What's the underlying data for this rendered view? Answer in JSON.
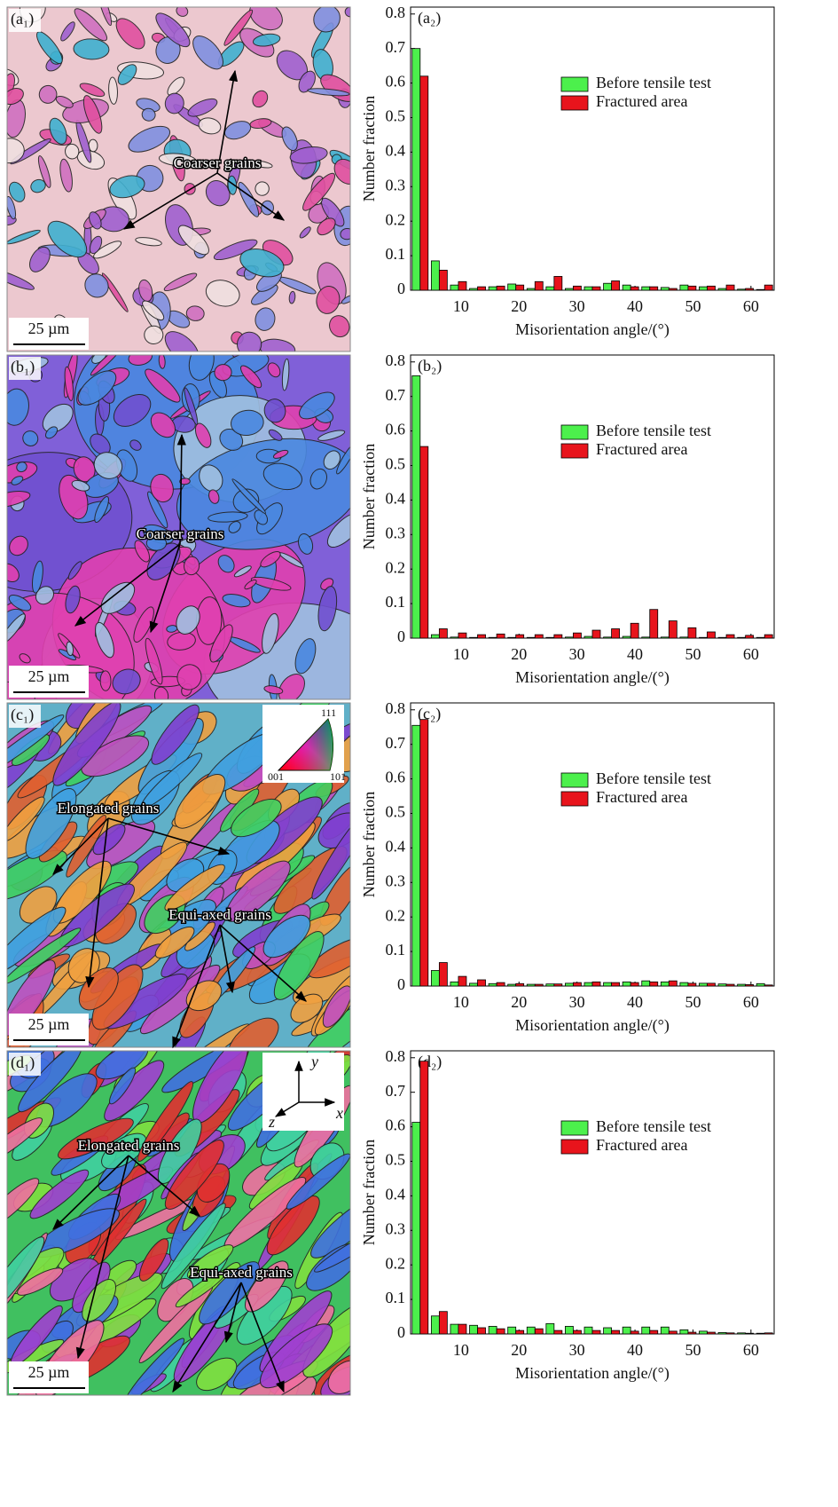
{
  "chart_data": [
    {
      "type": "bar",
      "panel_label": "(a₂)",
      "xlabel": "Misorientation angle/(°)",
      "ylabel": "Number fraction",
      "x": [
        2.95,
        6.25,
        9.55,
        12.85,
        16.15,
        19.45,
        22.75,
        26.05,
        29.35,
        32.65,
        35.95,
        39.25,
        42.55,
        45.85,
        49.15,
        52.45,
        55.75,
        59.05,
        62.35
      ],
      "series": [
        {
          "name": "Before tensile test",
          "color": "#4cf04c",
          "values": [
            0.7,
            0.085,
            0.015,
            0.005,
            0.01,
            0.018,
            0.005,
            0.01,
            0.005,
            0.01,
            0.02,
            0.015,
            0.01,
            0.008,
            0.015,
            0.01,
            0.005,
            0.003,
            0.002
          ]
        },
        {
          "name": "Fractured area",
          "color": "#e8141c",
          "values": [
            0.62,
            0.058,
            0.025,
            0.01,
            0.012,
            0.015,
            0.025,
            0.04,
            0.012,
            0.01,
            0.027,
            0.01,
            0.01,
            0.005,
            0.012,
            0.012,
            0.015,
            0.005,
            0.015
          ]
        }
      ],
      "xlim": [
        1.3,
        64
      ],
      "ylim": [
        0,
        0.82
      ],
      "xticks": [
        10,
        20,
        30,
        40,
        50,
        60
      ],
      "yticks": [
        0,
        0.1,
        0.2,
        0.3,
        0.4,
        0.5,
        0.6,
        0.7,
        0.8
      ]
    },
    {
      "type": "bar",
      "panel_label": "(b₂)",
      "xlabel": "Misorientation angle/(°)",
      "ylabel": "Number fraction",
      "x": [
        2.95,
        6.25,
        9.55,
        12.85,
        16.15,
        19.45,
        22.75,
        26.05,
        29.35,
        32.65,
        35.95,
        39.25,
        42.55,
        45.85,
        49.15,
        52.45,
        55.75,
        59.05,
        62.35
      ],
      "series": [
        {
          "name": "Before tensile test",
          "color": "#4cf04c",
          "values": [
            0.76,
            0.01,
            0.003,
            0.002,
            0.002,
            0.002,
            0.002,
            0.002,
            0.003,
            0.005,
            0.003,
            0.005,
            0.003,
            0.003,
            0.003,
            0.002,
            0.002,
            0.002,
            0.002
          ]
        },
        {
          "name": "Fractured area",
          "color": "#e8141c",
          "values": [
            0.555,
            0.027,
            0.015,
            0.01,
            0.012,
            0.01,
            0.01,
            0.01,
            0.015,
            0.023,
            0.027,
            0.043,
            0.083,
            0.05,
            0.03,
            0.018,
            0.01,
            0.008,
            0.01
          ]
        }
      ],
      "xlim": [
        1.3,
        64
      ],
      "ylim": [
        0,
        0.82
      ],
      "xticks": [
        10,
        20,
        30,
        40,
        50,
        60
      ],
      "yticks": [
        0,
        0.1,
        0.2,
        0.3,
        0.4,
        0.5,
        0.6,
        0.7,
        0.8
      ]
    },
    {
      "type": "bar",
      "panel_label": "(c₂)",
      "xlabel": "Misorientation angle/(°)",
      "ylabel": "Number fraction",
      "x": [
        2.95,
        6.25,
        9.55,
        12.85,
        16.15,
        19.45,
        22.75,
        26.05,
        29.35,
        32.65,
        35.95,
        39.25,
        42.55,
        45.85,
        49.15,
        52.45,
        55.75,
        59.05,
        62.35
      ],
      "series": [
        {
          "name": "Before tensile test",
          "color": "#4cf04c",
          "values": [
            0.755,
            0.045,
            0.012,
            0.008,
            0.007,
            0.005,
            0.005,
            0.006,
            0.008,
            0.01,
            0.01,
            0.012,
            0.015,
            0.012,
            0.01,
            0.008,
            0.006,
            0.005,
            0.007
          ]
        },
        {
          "name": "Fractured area",
          "color": "#e8141c",
          "values": [
            0.772,
            0.068,
            0.028,
            0.018,
            0.01,
            0.007,
            0.005,
            0.006,
            0.01,
            0.012,
            0.01,
            0.01,
            0.012,
            0.015,
            0.008,
            0.008,
            0.005,
            0.004,
            0.003
          ]
        }
      ],
      "xlim": [
        1.3,
        64
      ],
      "ylim": [
        0,
        0.82
      ],
      "xticks": [
        10,
        20,
        30,
        40,
        50,
        60
      ],
      "yticks": [
        0,
        0.1,
        0.2,
        0.3,
        0.4,
        0.5,
        0.6,
        0.7,
        0.8
      ]
    },
    {
      "type": "bar",
      "panel_label": "(d₂)",
      "xlabel": "Misorientation angle/(°)",
      "ylabel": "Number fraction",
      "x": [
        2.95,
        6.25,
        9.55,
        12.85,
        16.15,
        19.45,
        22.75,
        26.05,
        29.35,
        32.65,
        35.95,
        39.25,
        42.55,
        45.85,
        49.15,
        52.45,
        55.75,
        59.05,
        62.35
      ],
      "series": [
        {
          "name": "Before tensile test",
          "color": "#4cf04c",
          "values": [
            0.613,
            0.052,
            0.028,
            0.025,
            0.022,
            0.02,
            0.02,
            0.03,
            0.022,
            0.02,
            0.018,
            0.02,
            0.02,
            0.02,
            0.012,
            0.008,
            0.004,
            0.003,
            0.002
          ]
        },
        {
          "name": "Fractured area",
          "color": "#e8141c",
          "values": [
            0.79,
            0.065,
            0.028,
            0.018,
            0.015,
            0.01,
            0.015,
            0.01,
            0.01,
            0.01,
            0.01,
            0.008,
            0.01,
            0.008,
            0.005,
            0.005,
            0.003,
            0.002,
            0.003
          ]
        }
      ],
      "xlim": [
        1.3,
        64
      ],
      "ylim": [
        0,
        0.82
      ],
      "xticks": [
        10,
        20,
        30,
        40,
        50,
        60
      ],
      "yticks": [
        0,
        0.1,
        0.2,
        0.3,
        0.4,
        0.5,
        0.6,
        0.7,
        0.8
      ]
    }
  ],
  "images": [
    {
      "label": "(a₁)",
      "scale_bar": "25 µm",
      "annotations": [
        "Coarser grains"
      ]
    },
    {
      "label": "(b₁)",
      "scale_bar": "25 µm",
      "annotations": [
        "Coarser grains"
      ]
    },
    {
      "label": "(c₁)",
      "scale_bar": "25 µm",
      "annotations": [
        "Elongated grains",
        "Equi-axed grains"
      ],
      "inset": [
        "111",
        "001",
        "101"
      ]
    },
    {
      "label": "(d₁)",
      "scale_bar": "25 µm",
      "annotations": [
        "Elongated grains",
        "Equi-axed grains"
      ],
      "inset": [
        "y",
        "x",
        "z"
      ]
    }
  ]
}
